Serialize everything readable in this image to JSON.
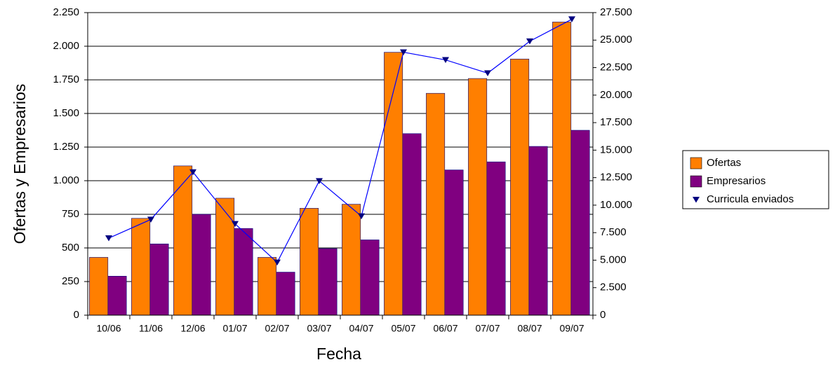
{
  "chart_data": {
    "type": "bar",
    "x_label": "Fecha",
    "y_label": "Ofertas  y Empresarios",
    "categories": [
      "10/06",
      "11/06",
      "12/06",
      "01/07",
      "02/07",
      "03/07",
      "04/07",
      "05/07",
      "06/07",
      "07/07",
      "08/07",
      "09/07"
    ],
    "series": [
      {
        "name": "Ofertas",
        "type": "bar",
        "color": "#ff7f00",
        "values": [
          430,
          720,
          1110,
          870,
          430,
          795,
          825,
          1955,
          1650,
          1760,
          1905,
          2180
        ]
      },
      {
        "name": "Empresarios",
        "type": "bar",
        "color": "#800080",
        "values": [
          290,
          530,
          750,
          645,
          320,
          495,
          560,
          1350,
          1080,
          1140,
          1255,
          1375
        ]
      },
      {
        "name": "Curricula enviados",
        "type": "line",
        "axis": "y2",
        "color": "#0000ff",
        "marker_color": "#000080",
        "values": [
          7000,
          8700,
          13000,
          8300,
          4800,
          12200,
          9000,
          23900,
          23200,
          22000,
          24900,
          26900
        ]
      }
    ],
    "ylim": [
      0,
      2250
    ],
    "yticks": [
      0,
      250,
      500,
      750,
      {
        "value": 1000,
        "label": "1.000"
      },
      {
        "value": 1250,
        "label": "1.250"
      },
      {
        "value": 1500,
        "label": "1.500"
      },
      {
        "value": 1750,
        "label": "1.750"
      },
      {
        "value": 2000,
        "label": "2.000"
      },
      {
        "value": 2250,
        "label": "2.250"
      }
    ],
    "y2lim": [
      0,
      27500
    ],
    "y2ticks": [
      0,
      {
        "value": 2500,
        "label": "2.500"
      },
      {
        "value": 5000,
        "label": "5.000"
      },
      {
        "value": 7500,
        "label": "7.500"
      },
      {
        "value": 10000,
        "label": "10.000"
      },
      {
        "value": 12500,
        "label": "12.500"
      },
      {
        "value": 15000,
        "label": "15.000"
      },
      {
        "value": 17500,
        "label": "17.500"
      },
      {
        "value": 20000,
        "label": "20.000"
      },
      {
        "value": 22500,
        "label": "22.500"
      },
      {
        "value": 25000,
        "label": "25.000"
      },
      {
        "value": 27500,
        "label": "27.500"
      }
    ],
    "grid": true,
    "legend": "right"
  }
}
